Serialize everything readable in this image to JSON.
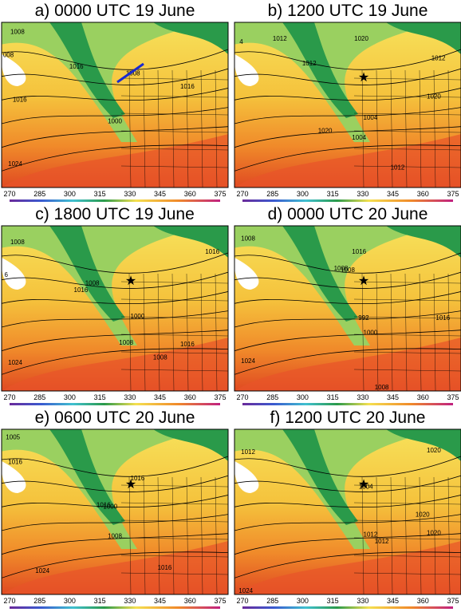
{
  "panels": [
    {
      "title": "a) 0000 UTC 19 June",
      "contour_labels": [
        "1008",
        "008",
        "1016",
        "1016",
        "1008",
        "1016",
        "1000",
        "1024"
      ]
    },
    {
      "title": "b) 1200 UTC 19 June",
      "contour_labels": [
        "1012",
        "1020",
        "1012",
        "1012",
        "1020",
        "1004",
        "1020",
        "1004",
        "1012",
        "4"
      ]
    },
    {
      "title": "c) 1800 UTC 19 June",
      "contour_labels": [
        "1008",
        "1016",
        "1008",
        "1016",
        "1000",
        "1008",
        "1016",
        "1008",
        "1024",
        "6"
      ]
    },
    {
      "title": "d) 0000 UTC 20 June",
      "contour_labels": [
        "1008",
        "1016",
        "1008",
        "1008",
        "992",
        "1016",
        "1000",
        "1024",
        "1008"
      ]
    },
    {
      "title": "e) 0600 UTC 20 June",
      "contour_labels": [
        "1005",
        "1016",
        "1016",
        "1016",
        "1000",
        "1008",
        "1016",
        "1024"
      ]
    },
    {
      "title": "f) 1200 UTC 20 June",
      "contour_labels": [
        "1012",
        "1004",
        "1020",
        "1020",
        "1012",
        "1012",
        "1020",
        "1024"
      ]
    }
  ],
  "colorbar": {
    "ticks": [
      270,
      285,
      300,
      315,
      330,
      345,
      360,
      375
    ]
  }
}
